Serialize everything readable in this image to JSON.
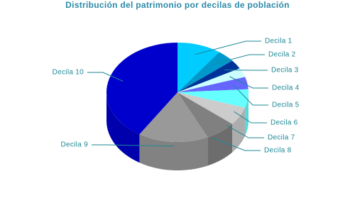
{
  "chart_data": {
    "type": "pie",
    "title": "Distribución del patrimonio por decilas de población",
    "categories": [
      "Decila 1",
      "Decila 2",
      "Decila 3",
      "Decila 4",
      "Decila 5",
      "Decila 6",
      "Decila 7",
      "Decila 8",
      "Decila 9",
      "Decila 10"
    ],
    "values": [
      10,
      4,
      3,
      3,
      4,
      6,
      6,
      7,
      16,
      41
    ],
    "colors": [
      "#00ccff",
      "#0099cc",
      "#003399",
      "#ccffff",
      "#6666ff",
      "#66ffff",
      "#cccccc",
      "#808080",
      "#999999",
      "#0000cc"
    ]
  }
}
